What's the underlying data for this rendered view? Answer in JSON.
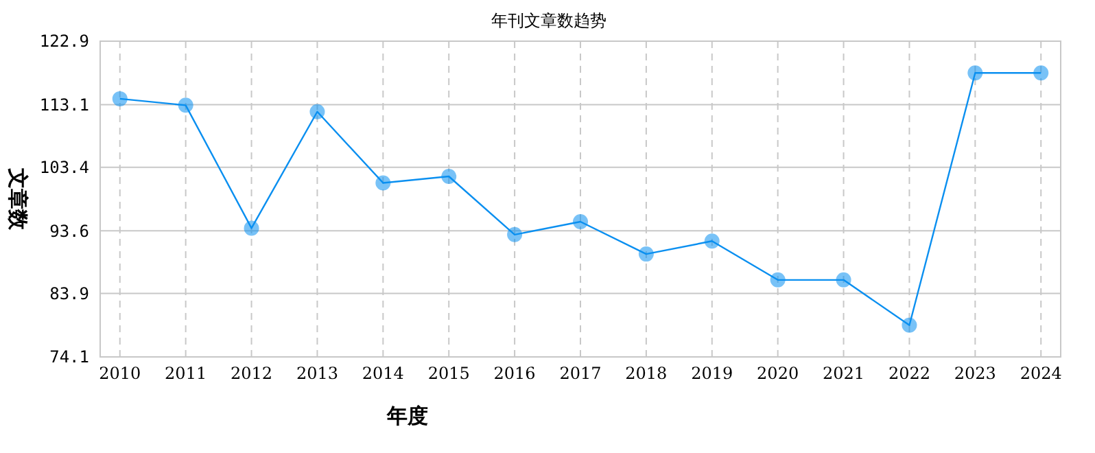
{
  "chart_data": {
    "type": "line",
    "title": "年刊文章数趋势",
    "xlabel": "年度",
    "ylabel": "文章数",
    "categories": [
      "2010",
      "2011",
      "2012",
      "2013",
      "2014",
      "2015",
      "2016",
      "2017",
      "2018",
      "2019",
      "2020",
      "2021",
      "2022",
      "2023",
      "2024"
    ],
    "series": [
      {
        "color": "#0a8ff0",
        "values": [
          114,
          113,
          94,
          112,
          101,
          102,
          93,
          95,
          90,
          92,
          86,
          86,
          79,
          118,
          118
        ]
      }
    ],
    "ylim": [
      74.1,
      122.9
    ],
    "yticks": [
      74.1,
      83.9,
      93.6,
      103.4,
      113.1,
      122.9
    ],
    "grid": true,
    "marker": "circle"
  }
}
